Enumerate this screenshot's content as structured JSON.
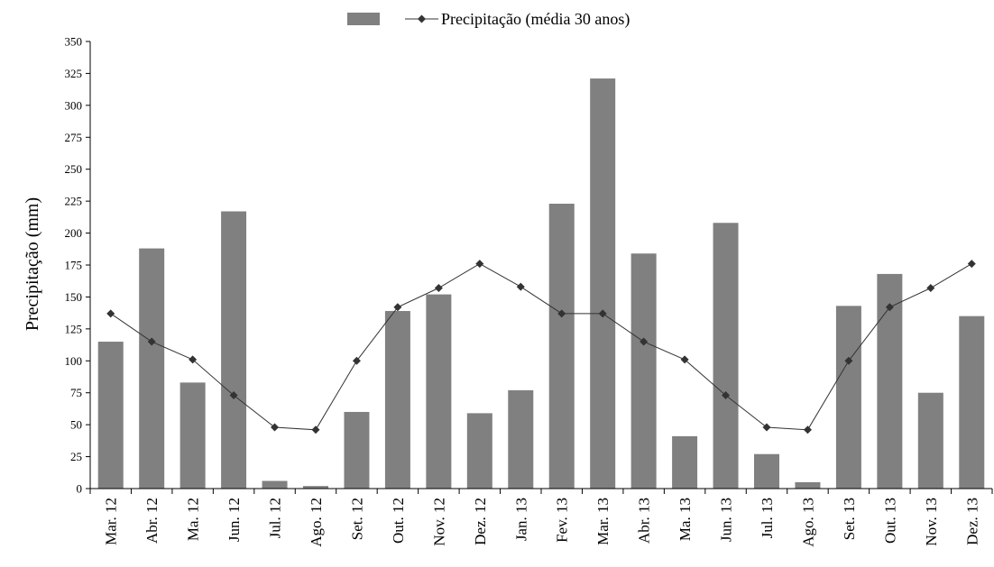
{
  "chart_data": {
    "type": "bar",
    "title": "",
    "xlabel": "",
    "ylabel": "Precipitação (mm)",
    "ylim": [
      0,
      350
    ],
    "yticks": [
      0,
      25,
      50,
      75,
      100,
      125,
      150,
      175,
      200,
      225,
      250,
      275,
      300,
      325,
      350
    ],
    "grid": false,
    "legend_position": "top-center",
    "categories": [
      "Mar. 12",
      "Abr. 12",
      "Ma. 12",
      "Jun. 12",
      "Jul. 12",
      "Ago. 12",
      "Set. 12",
      "Out. 12",
      "Nov. 12",
      "Dez. 12",
      "Jan. 13",
      "Fev. 13",
      "Mar. 13",
      "Abr. 13",
      "Ma. 13",
      "Jun. 13",
      "Jul. 13",
      "Ago. 13",
      "Set. 13",
      "Out. 13",
      "Nov. 13",
      "Dez. 13"
    ],
    "series": [
      {
        "name": "",
        "type": "bar",
        "color": "#808080",
        "values": [
          115,
          188,
          83,
          217,
          6,
          2,
          60,
          139,
          152,
          59,
          77,
          223,
          321,
          184,
          41,
          208,
          27,
          5,
          143,
          168,
          75,
          135
        ]
      },
      {
        "name": "Precipitação (média 30 anos)",
        "type": "line",
        "marker": "diamond",
        "color": "#333333",
        "values": [
          137,
          115,
          101,
          73,
          48,
          46,
          100,
          142,
          157,
          176,
          158,
          137,
          137,
          115,
          101,
          73,
          48,
          46,
          100,
          142,
          157,
          176
        ]
      }
    ]
  }
}
